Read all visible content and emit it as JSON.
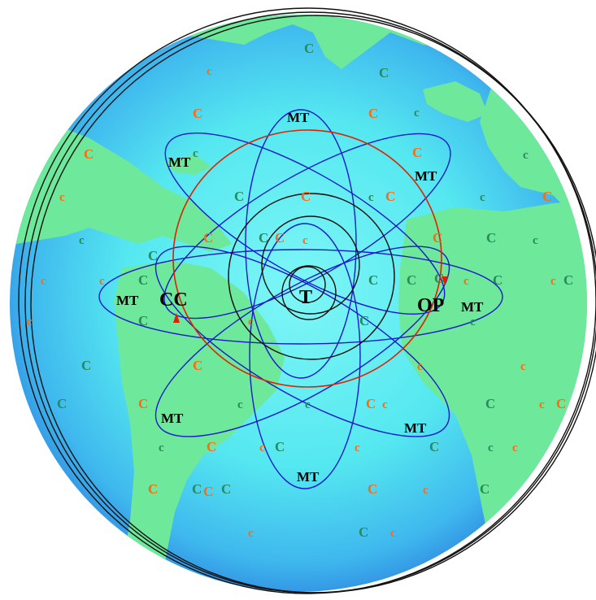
{
  "diagram": {
    "center_label": "T",
    "region_labels": [
      {
        "id": "cc",
        "text": "CC"
      },
      {
        "id": "op",
        "text": "OP"
      }
    ],
    "orbit_label": "MT",
    "colors": {
      "orbit": "#1a1acc",
      "ring": "#dd2200",
      "core_ring": "#111111",
      "ocean": "#55e8f0",
      "land": "#6ee89a",
      "letter_green": "#2a8a5a",
      "letter_orange": "#ff6a10"
    },
    "letters": [
      {
        "t": "C",
        "g": 1
      },
      {
        "t": "C",
        "g": 1
      },
      {
        "t": "c",
        "g": 0
      },
      {
        "t": "C",
        "g": 0
      },
      {
        "t": "C",
        "g": 0
      },
      {
        "t": "c",
        "g": 1
      },
      {
        "t": "C",
        "g": 0
      },
      {
        "t": "c",
        "g": 1
      },
      {
        "t": "C",
        "g": 0
      },
      {
        "t": "c",
        "g": 1
      },
      {
        "t": "c",
        "g": 0
      },
      {
        "t": "C",
        "g": 1
      },
      {
        "t": "C",
        "g": 0
      },
      {
        "t": "c",
        "g": 1
      },
      {
        "t": "C",
        "g": 0
      },
      {
        "t": "c",
        "g": 1
      },
      {
        "t": "C",
        "g": 0
      },
      {
        "t": "c",
        "g": 1
      },
      {
        "t": "C",
        "g": 0
      },
      {
        "t": "C",
        "g": 1
      },
      {
        "t": "C",
        "g": 0
      },
      {
        "t": "C",
        "g": 0
      },
      {
        "t": "c",
        "g": 1
      },
      {
        "t": "C",
        "g": 1
      },
      {
        "t": "c",
        "g": 0
      },
      {
        "t": "C",
        "g": 1
      },
      {
        "t": "c",
        "g": 0
      },
      {
        "t": "C",
        "g": 1
      },
      {
        "t": "C",
        "g": 1
      },
      {
        "t": "c",
        "g": 0
      },
      {
        "t": "c",
        "g": 0
      },
      {
        "t": "c",
        "g": 0
      },
      {
        "t": "C",
        "g": 1
      },
      {
        "t": "c",
        "g": 1
      },
      {
        "t": "C",
        "g": 0
      },
      {
        "t": "C",
        "g": 1
      },
      {
        "t": "C",
        "g": 1
      },
      {
        "t": "c",
        "g": 0
      },
      {
        "t": "c",
        "g": 0
      },
      {
        "t": "C",
        "g": 1
      },
      {
        "t": "C",
        "g": 1
      },
      {
        "t": "c",
        "g": 0
      },
      {
        "t": "c",
        "g": 1
      },
      {
        "t": "c",
        "g": 1
      },
      {
        "t": "C",
        "g": 0
      },
      {
        "t": "c",
        "g": 0
      },
      {
        "t": "C",
        "g": 0
      },
      {
        "t": "C",
        "g": 1
      },
      {
        "t": "C",
        "g": 1
      },
      {
        "t": "c",
        "g": 0
      },
      {
        "t": "C",
        "g": 0
      },
      {
        "t": "c",
        "g": 1
      },
      {
        "t": "c",
        "g": 0
      },
      {
        "t": "C",
        "g": 0
      },
      {
        "t": "C",
        "g": 1
      },
      {
        "t": "c",
        "g": 0
      },
      {
        "t": "C",
        "g": 1
      },
      {
        "t": "c",
        "g": 1
      },
      {
        "t": "c",
        "g": 0
      },
      {
        "t": "C",
        "g": 0
      },
      {
        "t": "C",
        "g": 1
      },
      {
        "t": "C",
        "g": 1
      },
      {
        "t": "c",
        "g": 0
      },
      {
        "t": "C",
        "g": 0
      },
      {
        "t": "C",
        "g": 1
      },
      {
        "t": "c",
        "g": 0
      },
      {
        "t": "C",
        "g": 1
      },
      {
        "t": "c",
        "g": 0
      },
      {
        "t": "C",
        "g": 1
      },
      {
        "t": "c",
        "g": 0
      },
      {
        "t": "C",
        "g": 1
      },
      {
        "t": "C",
        "g": 0
      }
    ]
  }
}
